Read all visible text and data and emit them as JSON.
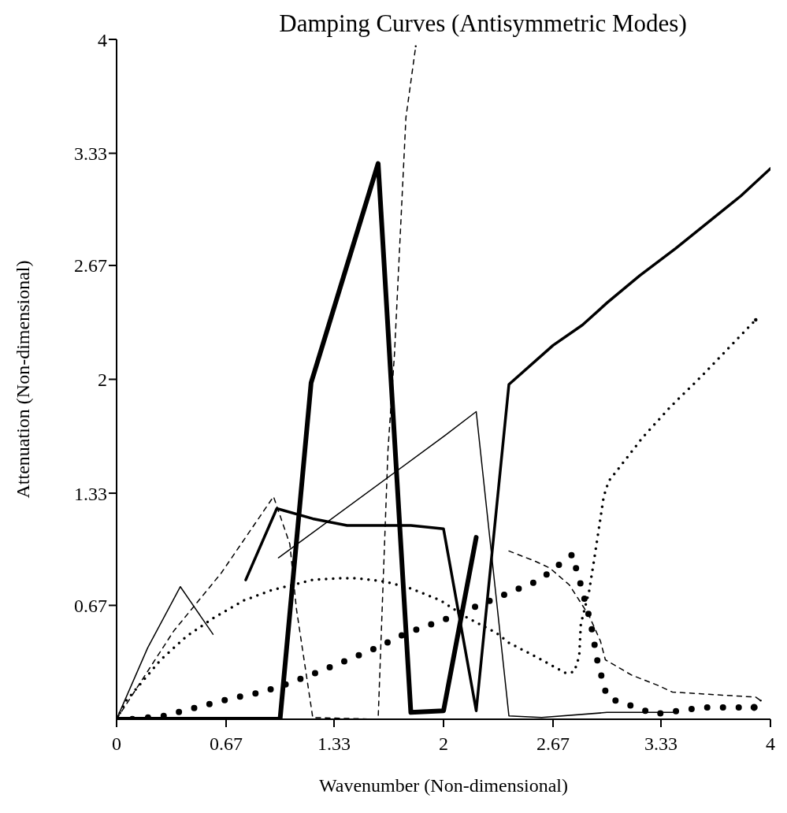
{
  "chart_data": {
    "type": "line",
    "title": "Damping Curves (Antisymmetric Modes)",
    "xlabel": "Wavenumber (Non-dimensional)",
    "ylabel": "Attenuation (Non-dimensional)",
    "xlim": [
      0,
      4
    ],
    "ylim": [
      0,
      4
    ],
    "xticks": [
      0,
      0.67,
      1.33,
      2,
      2.67,
      3.33,
      4
    ],
    "yticks": [
      0.67,
      1.33,
      2,
      2.67,
      3.33,
      4
    ],
    "grid": false,
    "series": [
      {
        "color": "#000000",
        "line_style": "solid",
        "x": [
          0,
          0.19,
          0.39,
          0.59
        ],
        "values": [
          0,
          0.42,
          0.78,
          0.5
        ]
      },
      {
        "color": "#000000",
        "line_style": "solid",
        "x": [
          0.99,
          2.01,
          2.2,
          2.4,
          2.6,
          3.0,
          3.41
        ],
        "values": [
          0.95,
          1.67,
          1.81,
          0.02,
          0.01,
          0.04,
          0.04
        ]
      },
      {
        "color": "#000000",
        "line_style": "solid",
        "x": [
          0.79,
          0.98,
          1.2,
          1.41,
          1.8,
          2.0,
          2.2,
          2.4,
          2.67,
          2.85,
          3.0,
          3.2,
          3.42,
          3.82,
          4.0
        ],
        "values": [
          0.82,
          1.24,
          1.18,
          1.14,
          1.14,
          1.12,
          0.05,
          1.97,
          2.2,
          2.32,
          2.45,
          2.61,
          2.77,
          3.08,
          3.24
        ]
      },
      {
        "color": "#000000",
        "line_style": "solid",
        "x": [
          0,
          1.0,
          1.19,
          1.6,
          1.8,
          2.0,
          2.2
        ],
        "values": [
          0,
          0,
          1.98,
          3.27,
          0.04,
          0.05,
          1.07
        ]
      },
      {
        "color": "#000000",
        "line_style": "dashed",
        "x": [
          0,
          0.35,
          0.64,
          0.96,
          1.06,
          1.1,
          1.2,
          1.6,
          1.66,
          1.7,
          1.77,
          1.83
        ],
        "values": [
          0,
          0.52,
          0.86,
          1.31,
          1.03,
          0.65,
          0.01,
          0,
          1.58,
          2.15,
          3.54,
          3.96
        ]
      },
      {
        "color": "#000000",
        "line_style": "dashed",
        "x": [
          2.4,
          2.56,
          2.65,
          2.77,
          2.89,
          2.96,
          2.99,
          3.15,
          3.31,
          3.4,
          3.91,
          3.94
        ],
        "values": [
          0.99,
          0.93,
          0.89,
          0.79,
          0.61,
          0.46,
          0.35,
          0.26,
          0.2,
          0.16,
          0.13,
          0.11
        ]
      },
      {
        "color": "#000000",
        "line_style": "dotted",
        "x": [
          0,
          0.06,
          0.27,
          0.43,
          0.6,
          0.78,
          0.95,
          1.2,
          1.37,
          1.47,
          1.64,
          1.8,
          1.98,
          2.14,
          2.32,
          2.4,
          2.58,
          2.75,
          2.8,
          2.83,
          2.84,
          2.89,
          2.92,
          2.98,
          3.01,
          3.22,
          3.39,
          3.57,
          3.73,
          3.91
        ],
        "values": [
          0,
          0.11,
          0.35,
          0.49,
          0.6,
          0.7,
          0.76,
          0.82,
          0.83,
          0.83,
          0.81,
          0.77,
          0.7,
          0.6,
          0.51,
          0.45,
          0.36,
          0.27,
          0.28,
          0.37,
          0.56,
          0.75,
          0.93,
          1.31,
          1.4,
          1.66,
          1.84,
          2.01,
          2.17,
          2.35
        ]
      },
      {
        "color": "#000000",
        "line_style": "dotted",
        "x": [
          0,
          0.09,
          0.29,
          0.49,
          0.69,
          0.89,
          1.08,
          1.29,
          1.59,
          1.78,
          1.99,
          2.19,
          2.39,
          2.59,
          2.68,
          2.79,
          2.81,
          2.84,
          2.9,
          2.94,
          3.0,
          3.08,
          3.18,
          3.29,
          3.59,
          3.9
        ],
        "values": [
          0,
          0,
          0.02,
          0.07,
          0.12,
          0.16,
          0.22,
          0.3,
          0.42,
          0.51,
          0.58,
          0.66,
          0.74,
          0.82,
          0.89,
          0.97,
          0.89,
          0.79,
          0.57,
          0.35,
          0.13,
          0.1,
          0.07,
          0.03,
          0.07,
          0.07
        ]
      }
    ]
  }
}
